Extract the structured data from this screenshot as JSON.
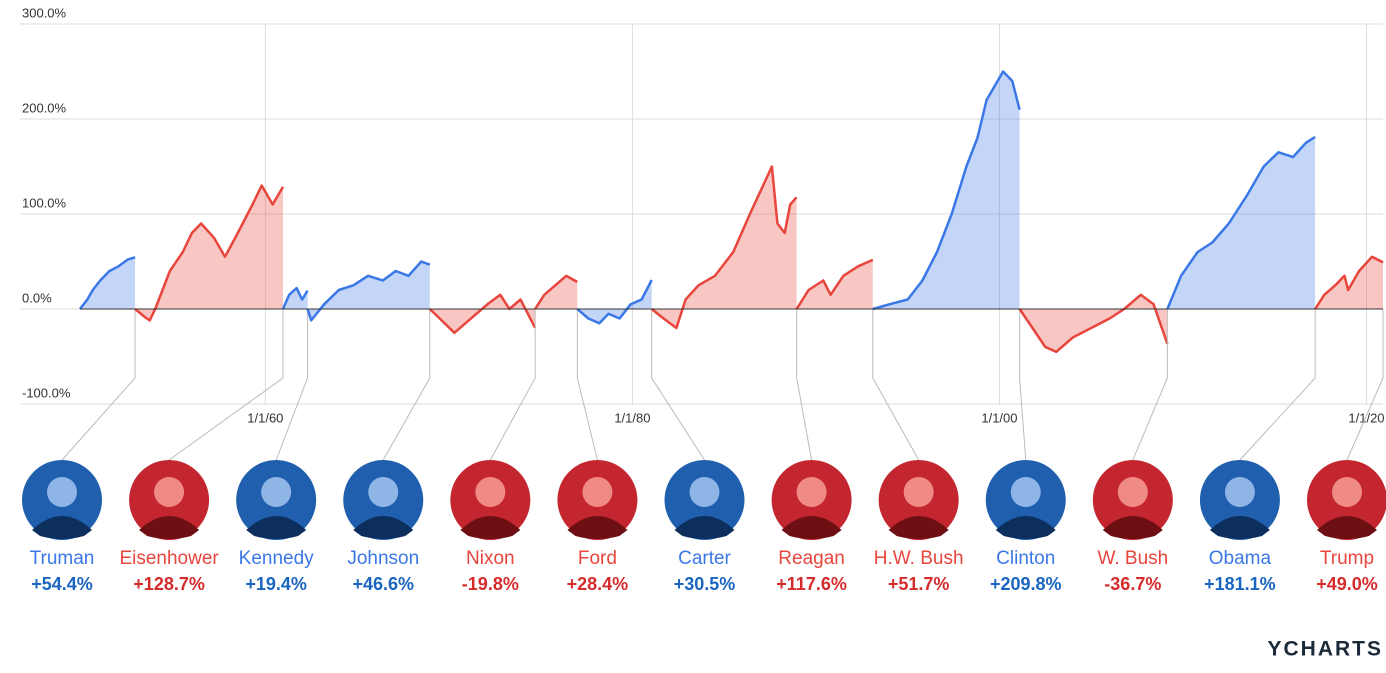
{
  "chart_data": {
    "type": "line",
    "xlim": [
      1949.9,
      2020.9
    ],
    "xticks": [
      {
        "value": 1960,
        "label": "1/1/60"
      },
      {
        "value": 1980,
        "label": "1/1/80"
      },
      {
        "value": 2000,
        "label": "1/1/00"
      },
      {
        "value": 2020,
        "label": "1/1/20"
      }
    ],
    "ylim": [
      -100,
      300
    ],
    "yticks": [
      {
        "value": -100,
        "label": "-100.0%"
      },
      {
        "value": 0,
        "label": "0.0%"
      },
      {
        "value": 100,
        "label": "100.0%"
      },
      {
        "value": 200,
        "label": "200.0%"
      },
      {
        "value": 300,
        "label": "300.0%"
      }
    ],
    "grid": true,
    "series": [
      {
        "name": "Truman",
        "color": "#3b78e7",
        "total_return": {
          "value": 54.4,
          "label": "+54.4%"
        },
        "x": [
          1949.9,
          1950.3,
          1950.6,
          1951.0,
          1951.5,
          1952.0,
          1952.5,
          1952.9
        ],
        "values": [
          0,
          10,
          20,
          30,
          40,
          45,
          52,
          54.4
        ]
      },
      {
        "name": "Eisenhower",
        "color": "#e8453c",
        "total_return": {
          "value": 128.7,
          "label": "+128.7%"
        },
        "x": [
          1952.9,
          1953.4,
          1953.7,
          1954.0,
          1954.8,
          1955.5,
          1956.0,
          1956.5,
          1957.2,
          1957.8,
          1958.5,
          1959.3,
          1959.8,
          1960.4,
          1960.96
        ],
        "values": [
          0,
          -8,
          -12,
          0,
          40,
          60,
          80,
          90,
          75,
          55,
          80,
          110,
          130,
          110,
          128.7
        ]
      },
      {
        "name": "Kennedy",
        "color": "#3b78e7",
        "total_return": {
          "value": 19.4,
          "label": "+19.4%"
        },
        "x": [
          1960.96,
          1961.3,
          1961.7,
          1962.0,
          1962.3
        ],
        "values": [
          0,
          15,
          22,
          10,
          19.4
        ]
      },
      {
        "name": "Johnson",
        "color": "#3b78e7",
        "total_return": {
          "value": 46.6,
          "label": "+46.6%"
        },
        "x": [
          1962.3,
          1962.5,
          1963.2,
          1964.0,
          1964.8,
          1965.6,
          1966.4,
          1967.1,
          1967.8,
          1968.5,
          1968.96
        ],
        "values": [
          0,
          -12,
          5,
          20,
          25,
          35,
          30,
          40,
          35,
          50,
          46.6
        ]
      },
      {
        "name": "Nixon",
        "color": "#e8453c",
        "total_return": {
          "value": -19.8,
          "label": "-19.8%"
        },
        "x": [
          1968.96,
          1969.5,
          1970.3,
          1970.9,
          1971.5,
          1972.1,
          1972.8,
          1973.3,
          1973.9,
          1974.7
        ],
        "values": [
          0,
          -10,
          -25,
          -15,
          -5,
          5,
          15,
          0,
          10,
          -19.8
        ]
      },
      {
        "name": "Ford",
        "color": "#e8453c",
        "total_return": {
          "value": 28.4,
          "label": "+28.4%"
        },
        "x": [
          1974.7,
          1975.2,
          1975.8,
          1976.4,
          1977.0
        ],
        "values": [
          0,
          15,
          25,
          35,
          28.4
        ]
      },
      {
        "name": "Carter",
        "color": "#3b78e7",
        "total_return": {
          "value": 30.5,
          "label": "+30.5%"
        },
        "x": [
          1977.0,
          1977.6,
          1978.2,
          1978.7,
          1979.3,
          1979.9,
          1980.5,
          1981.05
        ],
        "values": [
          0,
          -10,
          -15,
          -5,
          -10,
          5,
          10,
          30.5
        ]
      },
      {
        "name": "Reagan",
        "color": "#e8453c",
        "total_return": {
          "value": 117.6,
          "label": "+117.6%"
        },
        "x": [
          1981.05,
          1981.7,
          1982.4,
          1982.9,
          1983.6,
          1984.5,
          1985.5,
          1986.4,
          1987.6,
          1987.9,
          1988.3,
          1988.6,
          1988.95
        ],
        "values": [
          0,
          -10,
          -20,
          10,
          25,
          35,
          60,
          100,
          150,
          90,
          80,
          110,
          117.6
        ]
      },
      {
        "name": "H.W. Bush",
        "color": "#e8453c",
        "total_return": {
          "value": 51.7,
          "label": "+51.7%"
        },
        "x": [
          1988.95,
          1989.6,
          1990.4,
          1990.8,
          1991.5,
          1992.3,
          1993.1
        ],
        "values": [
          0,
          20,
          30,
          15,
          35,
          45,
          51.7
        ]
      },
      {
        "name": "Clinton",
        "color": "#3b78e7",
        "total_return": {
          "value": 209.8,
          "label": "+209.8%"
        },
        "x": [
          1993.1,
          1994.0,
          1995.0,
          1995.8,
          1996.6,
          1997.4,
          1998.2,
          1998.8,
          1999.3,
          2000.2,
          2000.7,
          2001.1
        ],
        "values": [
          0,
          5,
          10,
          30,
          60,
          100,
          150,
          180,
          220,
          250,
          240,
          209.8
        ]
      },
      {
        "name": "W. Bush",
        "color": "#e8453c",
        "total_return": {
          "value": -36.7,
          "label": "-36.7%"
        },
        "x": [
          2001.1,
          2001.8,
          2002.5,
          2003.1,
          2004.0,
          2005.0,
          2006.0,
          2006.8,
          2007.7,
          2008.4,
          2009.15
        ],
        "values": [
          0,
          -20,
          -40,
          -45,
          -30,
          -20,
          -10,
          0,
          15,
          5,
          -36.7
        ]
      },
      {
        "name": "Obama",
        "color": "#3b78e7",
        "total_return": {
          "value": 181.1,
          "label": "+181.1%"
        },
        "x": [
          2009.15,
          2009.9,
          2010.8,
          2011.6,
          2012.5,
          2013.5,
          2014.4,
          2015.2,
          2016.0,
          2016.7,
          2017.2
        ],
        "values": [
          0,
          35,
          60,
          70,
          90,
          120,
          150,
          165,
          160,
          175,
          181.1
        ]
      },
      {
        "name": "Trump",
        "color": "#e8453c",
        "total_return": {
          "value": 49.0,
          "label": "+49.0%"
        },
        "x": [
          2017.2,
          2017.7,
          2018.3,
          2018.8,
          2019.0,
          2019.6,
          2020.3,
          2020.9
        ],
        "values": [
          0,
          15,
          25,
          35,
          20,
          40,
          55,
          49.0
        ]
      }
    ]
  },
  "logo": "YCHARTS"
}
